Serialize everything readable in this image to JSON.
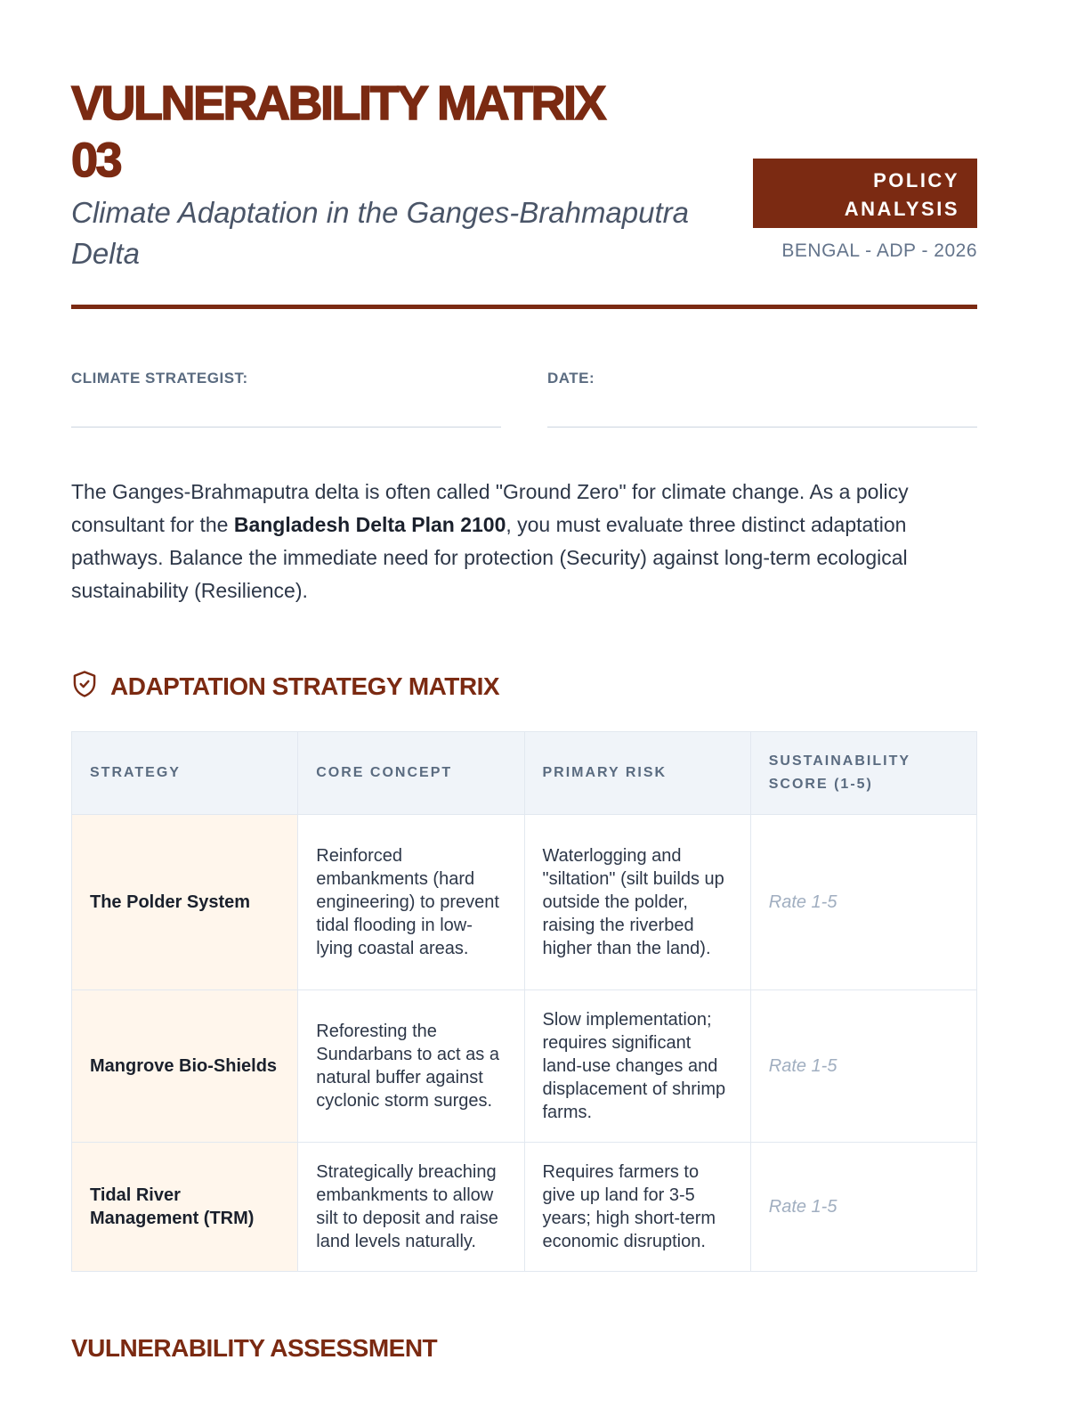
{
  "header": {
    "title_line1": "VULNERABILITY MATRIX",
    "title_line2": "03",
    "subtitle": "Climate Adaptation in the Ganges-Brahmaputra Delta",
    "badge_line1": "POLICY",
    "badge_line2": "ANALYSIS",
    "code": "BENGAL - ADP - 2026",
    "accent": "#7b2a12"
  },
  "fields": {
    "strategist": "CLIMATE STRATEGIST:",
    "date": "DATE:"
  },
  "intro": {
    "part1": "The Ganges-Brahmaputra delta is often called \"Ground Zero\" for climate change. As a policy consultant for the ",
    "bold": "Bangladesh Delta Plan 2100",
    "part2": ", you must evaluate three distinct adaptation pathways. Balance the immediate need for protection (Security) against long-term ecological sustainability (Resilience)."
  },
  "matrix": {
    "title": "ADAPTATION STRATEGY MATRIX",
    "icon": "shield-check-icon",
    "headers": [
      "STRATEGY",
      "CORE CONCEPT",
      "PRIMARY RISK",
      "SUSTAINABILITY SCORE (1-5)"
    ],
    "rows": [
      {
        "strategy": "The Polder System",
        "concept": "Reinforced embankments (hard engineering) to prevent tidal flooding in low-lying coastal areas.",
        "risk": "Waterlogging and \"siltation\" (silt builds up outside the polder, raising the riverbed higher than the land).",
        "score_placeholder": "Rate 1-5"
      },
      {
        "strategy": "Mangrove Bio-Shields",
        "concept": "Reforesting the Sundarbans to act as a natural buffer against cyclonic storm surges.",
        "risk": "Slow implementation; requires significant land-use changes and displacement of shrimp farms.",
        "score_placeholder": "Rate 1-5"
      },
      {
        "strategy": "Tidal River Management (TRM)",
        "concept": "Strategically breaching embankments to allow silt to deposit and raise land levels naturally.",
        "risk": "Requires farmers to give up land for 3-5 years; high short-term economic disruption.",
        "score_placeholder": "Rate 1-5"
      }
    ]
  },
  "assessment": {
    "title": "VULNERABILITY ASSESSMENT"
  }
}
